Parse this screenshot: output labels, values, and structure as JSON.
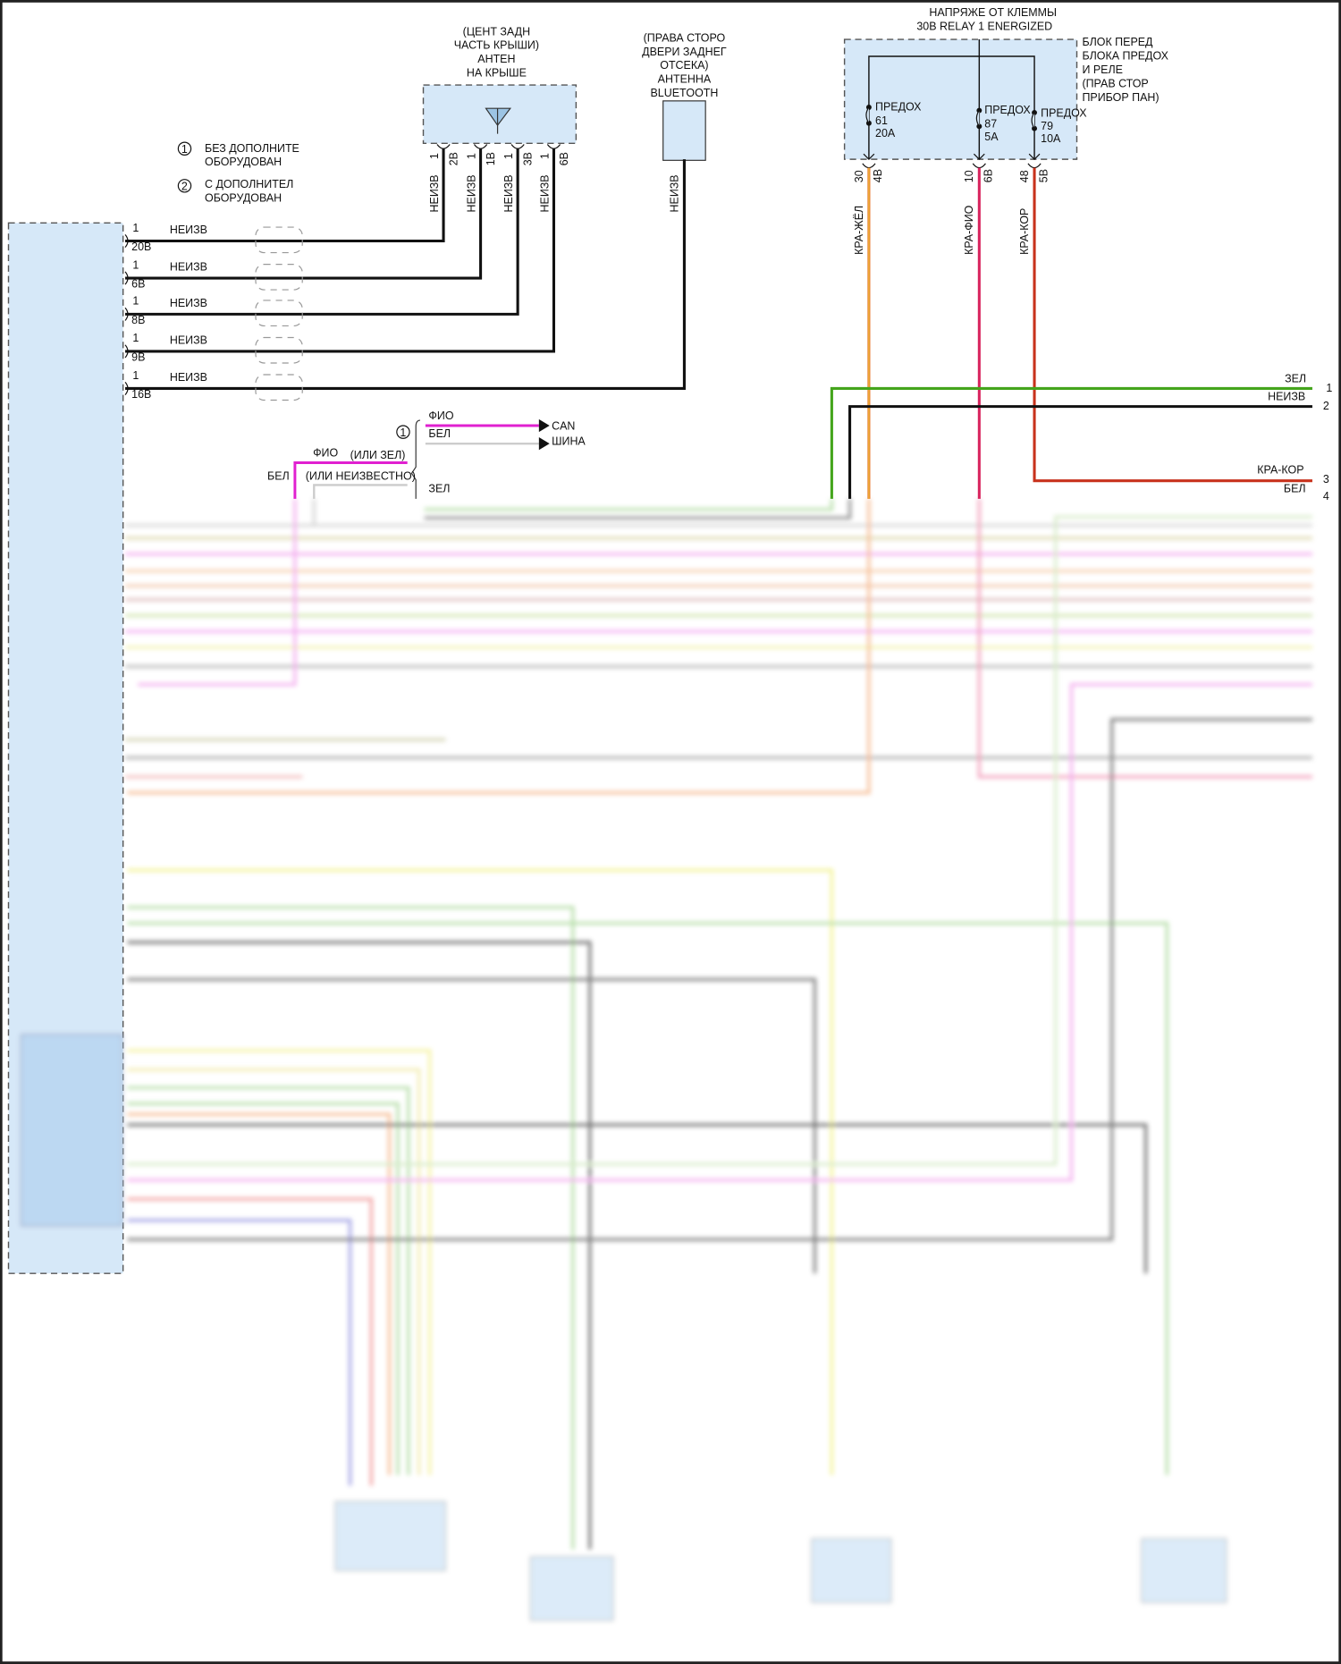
{
  "legend": {
    "items": [
      {
        "num": "1",
        "line1": "БЕЗ ДОПОЛНИТЕ",
        "line2": "ОБОРУДОВАН"
      },
      {
        "num": "2",
        "line1": "С ДОПОЛНИТЕЛ",
        "line2": "ОБОРУДОВАН"
      }
    ]
  },
  "roof_antenna": {
    "title": [
      "(ЦЕНТ ЗАДН",
      "ЧАСТЬ КРЫШИ)",
      "АНТЕН",
      "НА КРЫШЕ"
    ],
    "pins": [
      {
        "cav": "1",
        "conn": "2B",
        "wire": "НЕИЗВ"
      },
      {
        "cav": "1",
        "conn": "1B",
        "wire": "НЕИЗВ"
      },
      {
        "cav": "1",
        "conn": "3B",
        "wire": "НЕИЗВ"
      },
      {
        "cav": "1",
        "conn": "6B",
        "wire": "НЕИЗВ"
      }
    ]
  },
  "bt_antenna": {
    "title": [
      "(ПРАВА СТОРО",
      "ДВЕРИ ЗАДНЕГ",
      "ОТСЕКА)",
      "АНТЕННА",
      "BLUETOOTH"
    ],
    "wire": "НЕИЗВ"
  },
  "relay_block": {
    "supply": [
      "НАПРЯЖЕ ОТ КЛЕММЫ",
      "30B RELAY 1 ENERGIZED"
    ],
    "name": [
      "БЛОК ПЕРЕД",
      "БЛОКА ПРЕДОХ",
      "И РЕЛЕ",
      "(ПРАВ СТОР",
      "ПРИБОР ПАН)"
    ],
    "fuses": [
      {
        "label": "ПРЕДОХ",
        "num": "61",
        "amp": "20A",
        "cav": "30",
        "conn": "4B",
        "wire": "КРА-ЖЁЛ"
      },
      {
        "label": "ПРЕДОХ",
        "num": "87",
        "amp": "5A",
        "cav": "10",
        "conn": "6B",
        "wire": "КРА-ФИО"
      },
      {
        "label": "ПРЕДОХ",
        "num": "79",
        "amp": "10A",
        "cav": "48",
        "conn": "5B",
        "wire": "КРА-КОР"
      }
    ]
  },
  "module_pins": [
    {
      "cav": "1",
      "conn": "20B",
      "wire": "НЕИЗВ"
    },
    {
      "cav": "1",
      "conn": "6B",
      "wire": "НЕИЗВ"
    },
    {
      "cav": "1",
      "conn": "8B",
      "wire": "НЕИЗВ"
    },
    {
      "cav": "1",
      "conn": "9B",
      "wire": "НЕИЗВ"
    },
    {
      "cav": "1",
      "conn": "16B",
      "wire": "НЕИЗВ"
    }
  ],
  "can_bus": {
    "option_num": "1",
    "high_color": "ФИО",
    "low_color": "БЕЛ",
    "label1": "CAN",
    "label2": "ШИНА",
    "alt_high": "ФИО",
    "alt_high_note": "(ИЛИ ЗЕЛ)",
    "alt_low": "БЕЛ",
    "alt_low_note": "(ИЛИ НЕИЗВЕСТНО)",
    "green": "ЗЕЛ"
  },
  "right_connector": [
    {
      "pin": "1",
      "wire": "ЗЕЛ"
    },
    {
      "pin": "2",
      "wire": "НЕИЗВ"
    },
    {
      "pin": "3",
      "wire": "КРА-КОР"
    },
    {
      "pin": "4",
      "wire": "БЕЛ"
    }
  ],
  "colors": {
    "box_fill": "#d6e8f8",
    "red_yellow": "#e8762a",
    "red_violet": "#d8245e",
    "red_brown": "#c8321c",
    "green": "#44a51c",
    "violet": "#e020d0"
  }
}
